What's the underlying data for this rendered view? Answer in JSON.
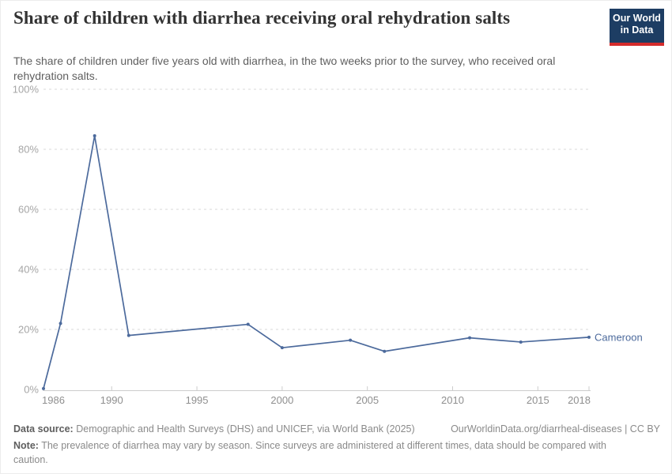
{
  "header": {
    "title": "Share of children with diarrhea receiving oral rehydration salts",
    "subtitle": "The share of children under five years old with diarrhea, in the two weeks prior to the survey, who received oral rehydration salts.",
    "logo": {
      "line1": "Our World",
      "line2": "in Data",
      "bg_color": "#1d3d63",
      "stripe_color": "#d42b2b"
    }
  },
  "chart_data": {
    "type": "line",
    "title": "Share of children with diarrhea receiving oral rehydration salts",
    "xlabel": "",
    "ylabel": "",
    "xlim": [
      1986,
      2018
    ],
    "ylim": [
      0,
      100
    ],
    "x_ticks": [
      1986,
      1990,
      1995,
      2000,
      2005,
      2010,
      2015,
      2018
    ],
    "y_ticks": [
      0,
      20,
      40,
      60,
      80,
      100
    ],
    "y_tick_suffix": "%",
    "grid": "horizontal-dashed",
    "legend": "line-end-label",
    "series": [
      {
        "name": "Cameroon",
        "color": "#4c6a9c",
        "x": [
          1986,
          1987,
          1989,
          1991,
          1998,
          2000,
          2004,
          2006,
          2011,
          2014,
          2018
        ],
        "y": [
          0.3,
          22,
          84.5,
          18,
          21.7,
          13.9,
          16.4,
          12.7,
          17.2,
          15.8,
          17.4
        ]
      }
    ],
    "colors": {
      "gridline": "#dadada",
      "axis": "#cccccc",
      "y_tick_label": "#a6a6a6",
      "x_tick_label": "#8f8f8f"
    }
  },
  "footer": {
    "source_label": "Data source:",
    "source_text": "Demographic and Health Surveys (DHS) and UNICEF, via World Bank (2025)",
    "link_text": "OurWorldinData.org/diarrheal-diseases | CC BY",
    "note_label": "Note:",
    "note_text": "The prevalence of diarrhea may vary by season. Since surveys are administered at different times, data should be compared with caution."
  }
}
